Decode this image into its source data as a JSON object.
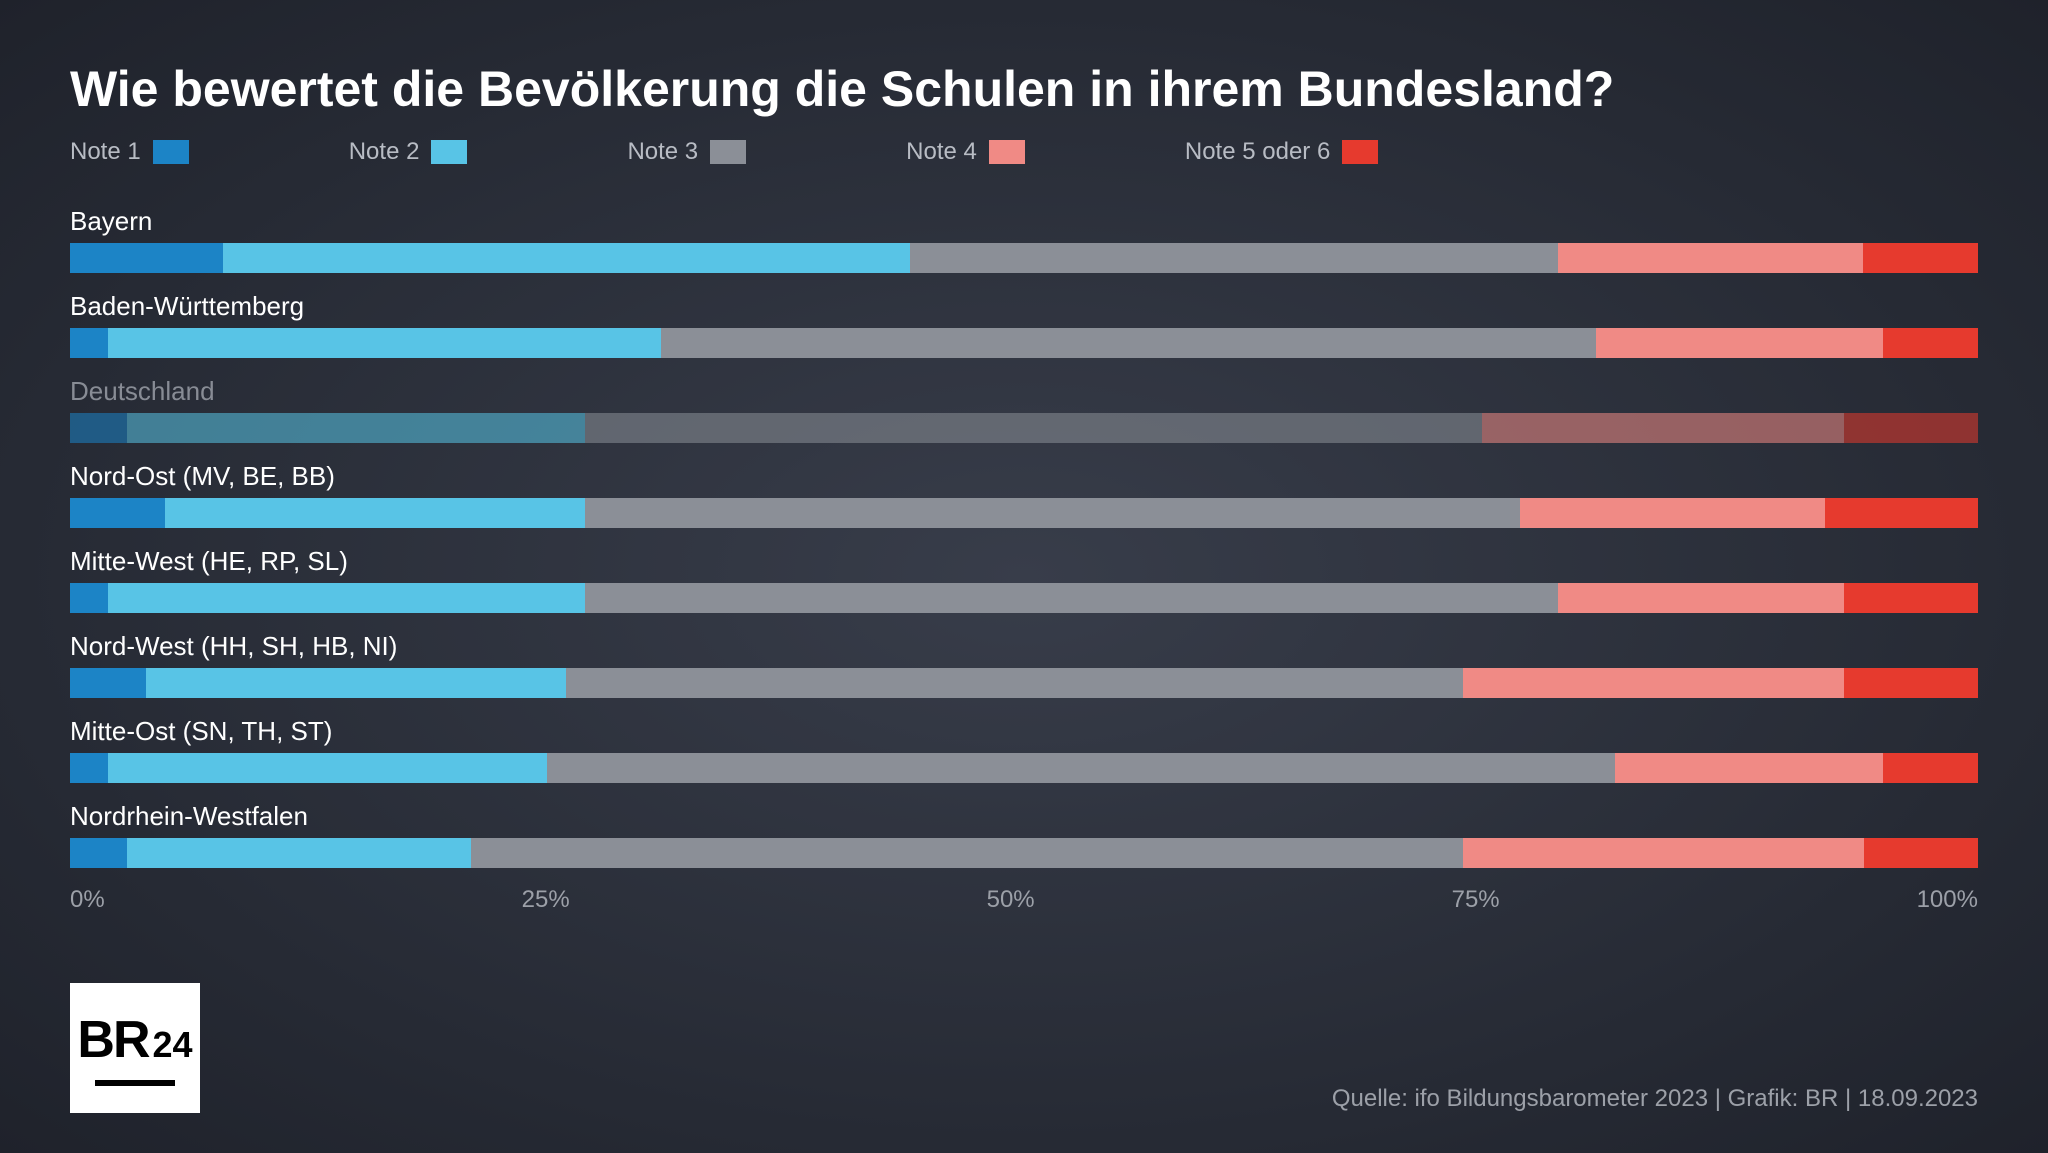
{
  "title": "Wie bewertet die Bevölkerung die Schulen in ihrem Bundesland?",
  "chart": {
    "type": "stacked-bar-horizontal",
    "xlim": [
      0,
      100
    ],
    "background_color": "#2a2e38",
    "title_fontsize": 50,
    "label_fontsize": 26,
    "legend_fontsize": 24,
    "axis_fontsize": 24,
    "source_fontsize": 24,
    "colors": {
      "note1": "#1c84c6",
      "note2": "#58c4e6",
      "note3": "#8b8f97",
      "note4": "#f08a85",
      "note5": "#e63a2e"
    },
    "legend": [
      {
        "label": "Note 1",
        "color_key": "note1"
      },
      {
        "label": "Note 2",
        "color_key": "note2"
      },
      {
        "label": "Note 3",
        "color_key": "note3"
      },
      {
        "label": "Note 4",
        "color_key": "note4"
      },
      {
        "label": "Note 5 oder 6",
        "color_key": "note5"
      }
    ],
    "xticks": [
      "0%",
      "25%",
      "50%",
      "75%",
      "100%"
    ],
    "rows": [
      {
        "label": "Bayern",
        "muted": false,
        "values": [
          8,
          36,
          34,
          16,
          6
        ]
      },
      {
        "label": "Baden-Württemberg",
        "muted": false,
        "values": [
          2,
          29,
          49,
          15,
          5
        ]
      },
      {
        "label": "Deutschland",
        "muted": true,
        "values": [
          3,
          24,
          47,
          19,
          7
        ]
      },
      {
        "label": "Nord-Ost (MV, BE, BB)",
        "muted": false,
        "values": [
          5,
          22,
          49,
          16,
          8
        ]
      },
      {
        "label": "Mitte-West (HE, RP, SL)",
        "muted": false,
        "values": [
          2,
          25,
          51,
          15,
          7
        ]
      },
      {
        "label": "Nord-West (HH, SH, HB, NI)",
        "muted": false,
        "values": [
          4,
          22,
          47,
          20,
          7
        ]
      },
      {
        "label": "Mitte-Ost (SN, TH, ST)",
        "muted": false,
        "values": [
          2,
          23,
          56,
          14,
          5
        ]
      },
      {
        "label": "Nordrhein-Westfalen",
        "muted": false,
        "values": [
          3,
          18,
          52,
          21,
          6
        ]
      }
    ]
  },
  "logo": {
    "br": "BR",
    "num": "24"
  },
  "source": "Quelle: ifo Bildungsbarometer 2023 | Grafik: BR | 18.09.2023"
}
